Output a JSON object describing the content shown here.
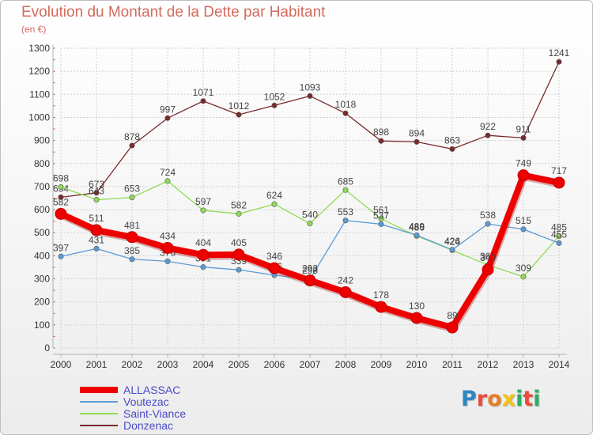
{
  "title": "Evolution du Montant de la Dette par Habitant",
  "unit_label": "(en €)",
  "logo_text": "Proxiti",
  "chart_data": {
    "type": "line",
    "title": "Evolution du Montant de la Dette par Habitant",
    "xlabel": "",
    "ylabel": "(en €)",
    "ylim": [
      0,
      1300
    ],
    "y_ticks": [
      0,
      100,
      200,
      300,
      400,
      500,
      600,
      700,
      800,
      900,
      1000,
      1100,
      1200,
      1300
    ],
    "categories": [
      "2000",
      "2001",
      "2002",
      "2003",
      "2004",
      "2005",
      "2006",
      "2007",
      "2008",
      "2009",
      "2010",
      "2011",
      "2012",
      "2013",
      "2014"
    ],
    "grid": true,
    "legend_position": "bottom-left",
    "series": [
      {
        "name": "ALLASSAC",
        "color": "#ee0000",
        "values": [
          582,
          511,
          481,
          434,
          404,
          405,
          346,
          293,
          242,
          178,
          130,
          89,
          340,
          749,
          717
        ]
      },
      {
        "name": "Voutezac",
        "color": "#5b9bd5",
        "values": [
          397,
          431,
          385,
          376,
          351,
          339,
          316,
          298,
          553,
          537,
          489,
          426,
          538,
          515,
          455
        ]
      },
      {
        "name": "Saint-Viance",
        "color": "#8edb55",
        "values": [
          698,
          643,
          653,
          724,
          597,
          582,
          624,
          540,
          685,
          561,
          486,
          424,
          360,
          309,
          485
        ]
      },
      {
        "name": "Donzenac",
        "color": "#7a2a2a",
        "values": [
          654,
          673,
          878,
          997,
          1071,
          1012,
          1052,
          1093,
          1018,
          898,
          894,
          863,
          922,
          911,
          1241
        ]
      }
    ]
  }
}
